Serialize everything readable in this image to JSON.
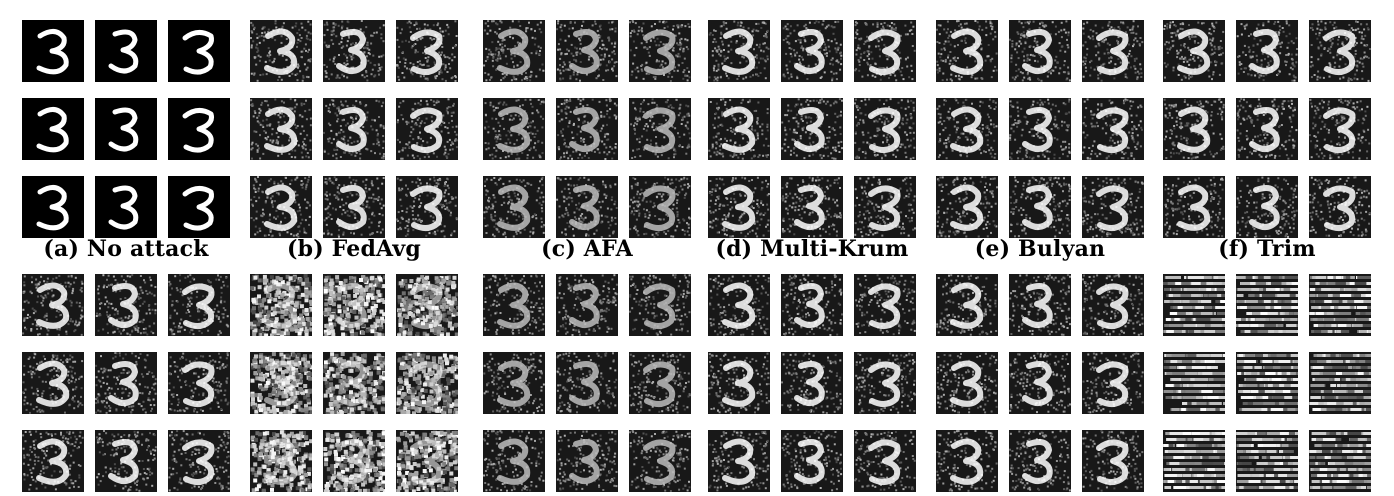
{
  "figure": {
    "captions": [
      "(a) No attack",
      "(b) FedAvg",
      "(c) AFA",
      "(d) Multi-Krum",
      "(e) Bulyan",
      "(f) Trim"
    ],
    "digit": "3",
    "top_row_style": [
      "clean",
      "noisy",
      "faint",
      "noisy",
      "dark",
      "grainy"
    ],
    "bottom_row_style": [
      "grainy",
      "blocky",
      "faint",
      "noisy",
      "noisy",
      "striped"
    ],
    "colors": {
      "background": "#ffffff",
      "tile": "#111111",
      "stroke": "#ffffff"
    }
  }
}
